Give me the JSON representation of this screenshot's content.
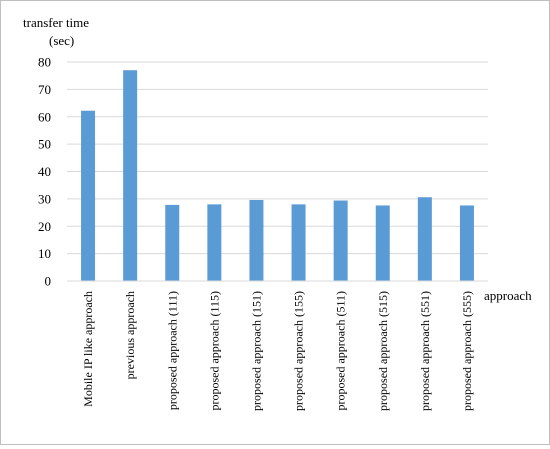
{
  "chart_data": {
    "type": "bar",
    "ylabel_line1": "transfer time",
    "ylabel_line2": "(sec)",
    "xlabel": "approach",
    "ylim": [
      0,
      80
    ],
    "yticks": [
      0,
      10,
      20,
      30,
      40,
      50,
      60,
      70,
      80
    ],
    "grid": true,
    "legend": "none",
    "bar_color": "#5b9bd5",
    "grid_color": "#d9d9d9",
    "categories": [
      "Mobile IP like approach",
      "previous approach",
      "proposed approach (111)",
      "proposed approach (115)",
      "proposed approach (151)",
      "proposed approach (155)",
      "proposed approach (511)",
      "proposed approach (515)",
      "proposed approach (551)",
      "proposed approach (555)"
    ],
    "values": [
      62.2,
      77.0,
      27.8,
      28.0,
      29.6,
      28.0,
      29.4,
      27.6,
      30.6,
      27.6
    ]
  }
}
